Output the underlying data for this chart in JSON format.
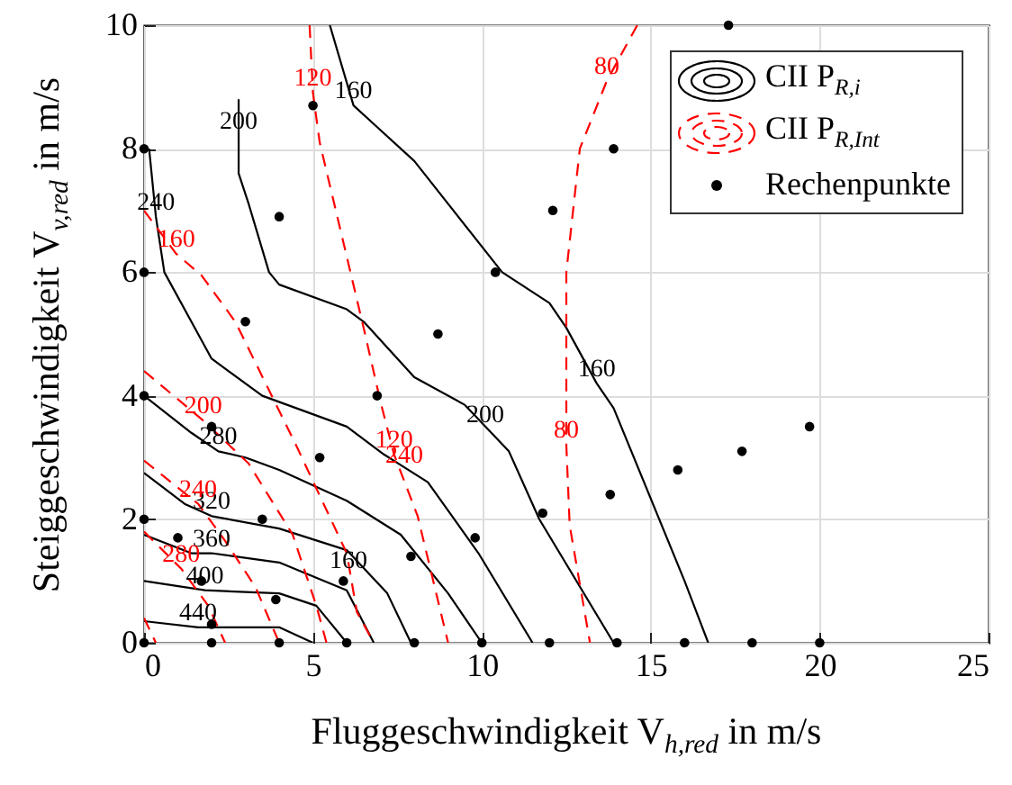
{
  "chart_data": {
    "type": "line",
    "xlabel": "Fluggeschwindigkeit V$_{h,red}$ in m/s",
    "ylabel": "Steiggeschwindigkeit V$_{v,red}$ in m/s",
    "xlim": [
      0,
      25
    ],
    "ylim": [
      0,
      10
    ],
    "xticks": [
      0,
      5,
      10,
      15,
      20,
      25
    ],
    "yticks": [
      0,
      2,
      4,
      6,
      8,
      10
    ],
    "grid": true,
    "legend": "top right",
    "series": [
      {
        "name": "CII P$_{R,i}$",
        "color": "#000000",
        "line_style": "solid",
        "x": [
          5.5,
          6.2,
          6.8,
          8,
          10.6,
          12,
          12.5,
          13.4,
          13.9,
          16,
          16.7
        ],
        "values": [
          10,
          8.7,
          8.4,
          7.8,
          6,
          5.5,
          5.1,
          4.2,
          3.8,
          1,
          0
        ]
      },
      {
        "color": "#000000",
        "line_style": "solid",
        "x": [
          2.8,
          2.8,
          3.1,
          3.7,
          4,
          6,
          6.5,
          8,
          9.5,
          10.8,
          11.7,
          13.9
        ],
        "values": [
          8.8,
          7.6,
          7.1,
          6,
          5.8,
          5.4,
          5.2,
          4.3,
          3.85,
          3.1,
          2,
          0
        ]
      },
      {
        "color": "#000000",
        "line_style": "solid",
        "x": [
          0.15,
          0.35,
          0.6,
          1.6,
          2,
          3.5,
          6,
          7.1,
          8.4,
          9.9,
          11.5
        ],
        "values": [
          8,
          6.9,
          6,
          5,
          4.6,
          4,
          3.5,
          3.05,
          2.6,
          1.45,
          0
        ]
      },
      {
        "color": "#000000",
        "line_style": "solid",
        "x": [
          0,
          1.4,
          2.2,
          3,
          4,
          6,
          7.6,
          9,
          10
        ],
        "values": [
          4,
          3.4,
          3.1,
          3,
          2.8,
          2.3,
          1.75,
          0.8,
          0
        ]
      },
      {
        "color": "#000000",
        "line_style": "solid",
        "x": [
          0,
          1.2,
          2,
          4,
          6,
          7.2,
          7.9
        ],
        "values": [
          2.75,
          2.25,
          2.05,
          1.85,
          1.5,
          0.8,
          0
        ]
      },
      {
        "color": "#000000",
        "line_style": "solid",
        "x": [
          0,
          1.4,
          2,
          4,
          6,
          6.8
        ],
        "values": [
          1.75,
          1.45,
          1.45,
          1.3,
          0.85,
          0
        ]
      },
      {
        "color": "#000000",
        "line_style": "solid",
        "x": [
          0,
          1.8,
          4,
          5.1,
          6
        ],
        "values": [
          1,
          0.85,
          0.8,
          0.6,
          0
        ]
      },
      {
        "color": "#000000",
        "line_style": "solid",
        "x": [
          0,
          1.6,
          4,
          5
        ],
        "values": [
          0.35,
          0.25,
          0.25,
          0
        ]
      },
      {
        "name": "CII P$_{R,Int}$",
        "color": "#ff0000",
        "line_style": "dashed",
        "x": [
          14.6,
          13.7,
          12.9,
          12.5,
          12.5,
          12.6,
          13.2
        ],
        "values": [
          10,
          9.1,
          8,
          6,
          3.2,
          1.9,
          0
        ]
      },
      {
        "color": "#ff0000",
        "line_style": "dashed",
        "x": [
          4.9,
          5,
          5.2,
          6.5,
          7,
          7.4,
          8.1,
          9
        ],
        "values": [
          10,
          8.9,
          8.1,
          5.1,
          3.9,
          3.05,
          2.05,
          0
        ]
      },
      {
        "color": "#ff0000",
        "line_style": "dashed",
        "x": [
          0,
          0.95,
          1.7,
          2.7,
          4.5,
          6,
          6.3,
          6.8
        ],
        "values": [
          7,
          6.3,
          5.95,
          5.2,
          3.2,
          1.45,
          0.5,
          0
        ]
      },
      {
        "color": "#ff0000",
        "line_style": "dashed",
        "x": [
          0,
          1.75,
          3.1,
          4.4,
          5.1,
          5.4
        ],
        "values": [
          4.4,
          3.6,
          2.9,
          1.75,
          0.6,
          0
        ]
      },
      {
        "color": "#ff0000",
        "line_style": "dashed",
        "x": [
          0,
          1.6,
          2.4,
          3.3,
          4
        ],
        "values": [
          2.95,
          2.25,
          1.65,
          0.9,
          0
        ]
      },
      {
        "color": "#ff0000",
        "line_style": "dashed",
        "x": [
          0,
          1.1,
          1.9,
          2.4
        ],
        "values": [
          1.8,
          1.2,
          0.6,
          0
        ]
      },
      {
        "color": "#ff0000",
        "line_style": "dashed",
        "x": [
          0,
          0.35
        ],
        "values": [
          0.4,
          0
        ]
      },
      {
        "name": "Rechenpunkte",
        "type": "scatter",
        "marker": "circle",
        "color": "#000000",
        "x": [
          0,
          2,
          4,
          6,
          8,
          10,
          12,
          14,
          16,
          18,
          20,
          0,
          0,
          0,
          0,
          2,
          3.9,
          5.9,
          7.9,
          9.8,
          11.8,
          13.8,
          15.8,
          17.7,
          19.7,
          1.7,
          3.5,
          5.2,
          6.9,
          8.7,
          10.4,
          12.1,
          13.9,
          17.3,
          1,
          2,
          3,
          4,
          5
        ],
        "values": [
          0,
          0,
          0,
          0,
          0,
          0,
          0,
          0,
          0,
          0,
          0,
          2,
          4,
          6,
          8,
          0.3,
          0.7,
          1,
          1.4,
          1.7,
          2.1,
          2.4,
          2.8,
          3.1,
          3.5,
          1,
          2,
          3,
          4,
          5,
          6,
          7,
          8,
          10,
          1.7,
          3.5,
          5.2,
          6.9,
          8.7
        ]
      }
    ],
    "annotations": [
      {
        "text": "160",
        "x": 6.2,
        "y": 8.7
      },
      {
        "text": "160",
        "x": 13.4,
        "y": 4.2
      },
      {
        "text": "200",
        "x": 2.8,
        "y": 8.2
      },
      {
        "text": "200",
        "x": 10.1,
        "y": 3.45
      },
      {
        "text": "240",
        "x": 0.35,
        "y": 6.9
      },
      {
        "text": "240",
        "x": 7.7,
        "y": 2.8
      },
      {
        "text": "280",
        "x": 2.2,
        "y": 3.1
      },
      {
        "text": "320",
        "x": 2,
        "y": 2.05
      },
      {
        "text": "360",
        "x": 2,
        "y": 1.45
      },
      {
        "text": "400",
        "x": 1.8,
        "y": 0.85
      },
      {
        "text": "440",
        "x": 1.6,
        "y": 0.25
      },
      {
        "text": "80",
        "x": 13.7,
        "y": 9.1
      },
      {
        "text": "80",
        "x": 12.5,
        "y": 3.2
      },
      {
        "text": "120",
        "x": 5,
        "y": 8.9
      },
      {
        "text": "120",
        "x": 7.4,
        "y": 3.05
      },
      {
        "text": "160",
        "x": 0.95,
        "y": 6.3
      },
      {
        "text": "160",
        "x": 6.05,
        "y": 1.1
      },
      {
        "text": "200",
        "x": 1.75,
        "y": 3.6
      },
      {
        "text": "240",
        "x": 1.6,
        "y": 2.25
      },
      {
        "text": "280",
        "x": 1.1,
        "y": 1.2
      }
    ]
  }
}
